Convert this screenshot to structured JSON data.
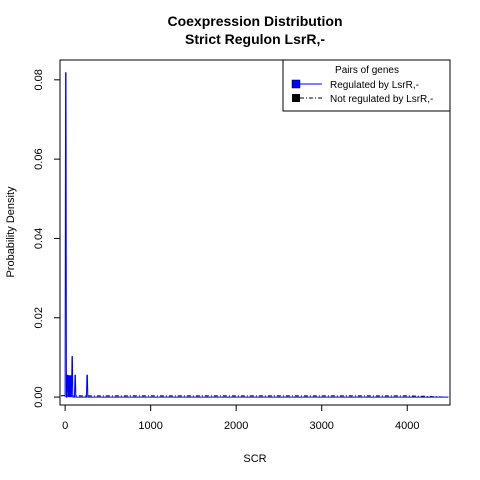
{
  "chart_data": {
    "type": "line",
    "title": "Coexpression Distribution",
    "subtitle": "Strict Regulon LsrR,-",
    "xlabel": "SCR",
    "ylabel": "Probability Density",
    "xlim": [
      -60,
      4500
    ],
    "ylim": [
      -0.002,
      0.085
    ],
    "xticks": [
      0,
      1000,
      2000,
      3000,
      4000
    ],
    "yticks": [
      0.0,
      0.02,
      0.04,
      0.06,
      0.08
    ],
    "xtick_labels": [
      "0",
      "1000",
      "2000",
      "3000",
      "4000"
    ],
    "ytick_labels": [
      "0.00",
      "0.02",
      "0.04",
      "0.06",
      "0.08"
    ],
    "grid": false,
    "legend": {
      "title": "Pairs of genes",
      "position": "top-right",
      "entries": [
        "Regulated by  LsrR,-",
        "Not regulated by  LsrR,-"
      ]
    },
    "series": [
      {
        "name": "Regulated by  LsrR,-",
        "color": "#0000ff",
        "style": "solid",
        "x": [
          0,
          5,
          10,
          15,
          20,
          25,
          30,
          35,
          40,
          45,
          50,
          55,
          60,
          65,
          70,
          75,
          80,
          85,
          90,
          95,
          100,
          105,
          110,
          115,
          120,
          125,
          130,
          135,
          140,
          145,
          150,
          160,
          170,
          180,
          190,
          200,
          210,
          220,
          230,
          240,
          250,
          255,
          260,
          265,
          270,
          280,
          300,
          400,
          600,
          1000,
          2000,
          3000,
          4000,
          4480
        ],
        "y": [
          0,
          0.0818,
          0.0818,
          0,
          0,
          0.0055,
          0.0055,
          0,
          0.0055,
          0,
          0.0055,
          0,
          0.0055,
          0,
          0.0055,
          0,
          0.0102,
          0.0102,
          0,
          0,
          0,
          0,
          0,
          0.0055,
          0.0055,
          0,
          0,
          0,
          0,
          0,
          0,
          0,
          0,
          0,
          0,
          0,
          0,
          0,
          0,
          0,
          0,
          0.0055,
          0.0055,
          0,
          0,
          0,
          0,
          0,
          0,
          0,
          0,
          0,
          0,
          0
        ]
      },
      {
        "name": "Not regulated by  LsrR,-",
        "color": "#000000",
        "style": "dashdot",
        "x": [
          -50,
          0,
          50,
          100,
          200,
          500,
          1000,
          1500,
          2000,
          2500,
          3000,
          3500,
          4000,
          4200,
          4300,
          4480
        ],
        "y": [
          0.0003,
          0.0004,
          0.0003,
          0.0003,
          0.0003,
          0.0003,
          0.0003,
          0.0003,
          0.0003,
          0.0003,
          0.0003,
          0.0003,
          0.0003,
          0.0002,
          0.0001,
          0.0
        ]
      }
    ]
  }
}
